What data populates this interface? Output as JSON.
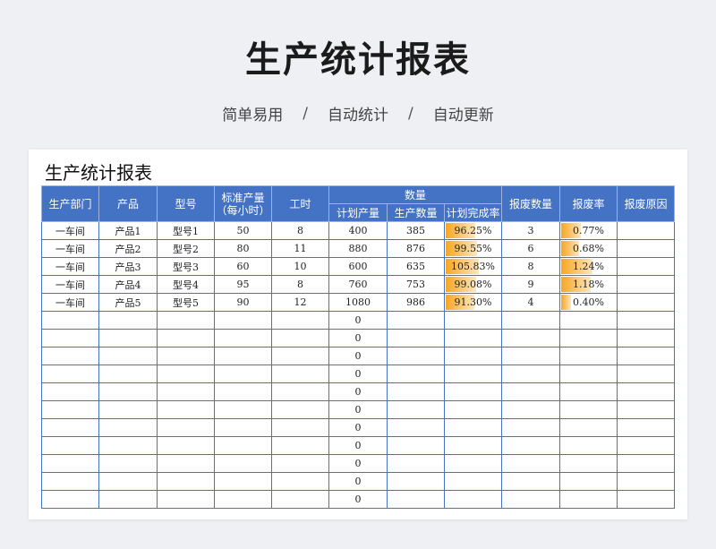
{
  "header": {
    "title": "生产统计报表",
    "tags": [
      "简单易用",
      "自动统计",
      "自动更新"
    ],
    "separator": "/"
  },
  "sheet": {
    "title": "生产统计报表",
    "columns": {
      "dept": "生产部门",
      "product": "产品",
      "model": "型号",
      "std_output": "标准产量\n（每小时）",
      "hours": "工时",
      "quantity_group": "数量",
      "planned": "计划产量",
      "produced": "生产数量",
      "completion": "计划完成率",
      "scrap_qty": "报废数量",
      "scrap_rate": "报废率",
      "scrap_reason": "报废原因"
    },
    "rows": [
      {
        "dept": "一车间",
        "product": "产品1",
        "model": "型号1",
        "std": "50",
        "hours": "8",
        "planned": "400",
        "produced": "385",
        "completion": "96.25%",
        "completion_frac": 0.9625,
        "scrap_qty": "3",
        "scrap_rate": "0.77%",
        "scrap_frac": 0.0077,
        "reason": ""
      },
      {
        "dept": "一车间",
        "product": "产品2",
        "model": "型号2",
        "std": "80",
        "hours": "11",
        "planned": "880",
        "produced": "876",
        "completion": "99.55%",
        "completion_frac": 0.9955,
        "scrap_qty": "6",
        "scrap_rate": "0.68%",
        "scrap_frac": 0.0068,
        "reason": ""
      },
      {
        "dept": "一车间",
        "product": "产品3",
        "model": "型号3",
        "std": "60",
        "hours": "10",
        "planned": "600",
        "produced": "635",
        "completion": "105.83%",
        "completion_frac": 1.0583,
        "scrap_qty": "8",
        "scrap_rate": "1.24%",
        "scrap_frac": 0.0124,
        "reason": ""
      },
      {
        "dept": "一车间",
        "product": "产品4",
        "model": "型号4",
        "std": "95",
        "hours": "8",
        "planned": "760",
        "produced": "753",
        "completion": "99.08%",
        "completion_frac": 0.9908,
        "scrap_qty": "9",
        "scrap_rate": "1.18%",
        "scrap_frac": 0.0118,
        "reason": ""
      },
      {
        "dept": "一车间",
        "product": "产品5",
        "model": "型号5",
        "std": "90",
        "hours": "12",
        "planned": "1080",
        "produced": "986",
        "completion": "91.30%",
        "completion_frac": 0.913,
        "scrap_qty": "4",
        "scrap_rate": "0.40%",
        "scrap_frac": 0.004,
        "reason": ""
      }
    ],
    "empty_row_count": 11,
    "empty_planned_value": "0"
  },
  "colors": {
    "header_bg": "#4472c4",
    "bar_start": "#f6a623",
    "bar_end": "#fde6bf"
  }
}
